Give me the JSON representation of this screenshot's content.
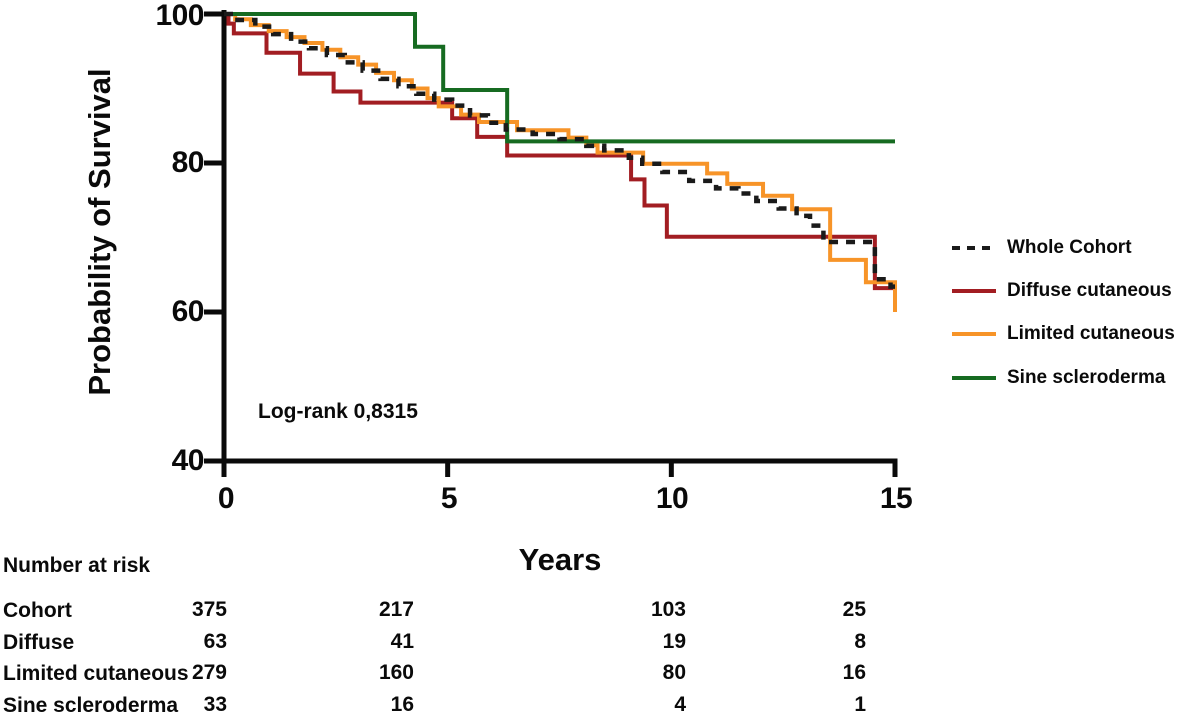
{
  "chart_data": {
    "type": "line",
    "subtype": "kaplan-meier-step",
    "xlabel": "Years",
    "ylabel": "Probability of Survival",
    "xlim": [
      0,
      15
    ],
    "ylim": [
      40,
      100
    ],
    "x_ticks": [
      0,
      5,
      10,
      15
    ],
    "y_ticks": [
      100,
      80,
      60,
      40
    ],
    "x_tick_labels": [
      "0",
      "5",
      "10",
      "15"
    ],
    "y_tick_labels": [
      "100",
      "80",
      "60",
      "40"
    ],
    "grid": false,
    "legend_position": "right-outside",
    "annotation": "Log-rank 0,8315",
    "axis_color": "#0a0a0a",
    "series": [
      {
        "name": "Whole Cohort",
        "color": "#1a1a1a",
        "dash": true,
        "z": 4,
        "points": [
          [
            0,
            100
          ],
          [
            0.3,
            99.2
          ],
          [
            0.7,
            98.3
          ],
          [
            1.1,
            97.3
          ],
          [
            1.5,
            96.3
          ],
          [
            1.9,
            95.4
          ],
          [
            2.3,
            94.5
          ],
          [
            2.7,
            93.5
          ],
          [
            3.1,
            92.4
          ],
          [
            3.5,
            91.3
          ],
          [
            3.9,
            90.3
          ],
          [
            4.3,
            89.3
          ],
          [
            4.7,
            88.5
          ],
          [
            5.1,
            87.7
          ],
          [
            5.5,
            86.4
          ],
          [
            5.9,
            85.4
          ],
          [
            6.3,
            84.5
          ],
          [
            6.9,
            83.9
          ],
          [
            7.5,
            83.2
          ],
          [
            8.1,
            82.3
          ],
          [
            8.5,
            81.7
          ],
          [
            9.05,
            80.7
          ],
          [
            9.35,
            79.9
          ],
          [
            9.8,
            78.8
          ],
          [
            10.4,
            77.6
          ],
          [
            11.0,
            76.6
          ],
          [
            11.5,
            75.9
          ],
          [
            11.9,
            74.9
          ],
          [
            12.4,
            73.9
          ],
          [
            12.8,
            72.9
          ],
          [
            13.1,
            71.6
          ],
          [
            13.4,
            69.4
          ],
          [
            14.55,
            64.4
          ],
          [
            14.9,
            63.4
          ],
          [
            15,
            63.4
          ]
        ]
      },
      {
        "name": "Diffuse cutaneous",
        "color": "#a21d22",
        "dash": false,
        "z": 1,
        "points": [
          [
            0,
            100
          ],
          [
            0.1,
            98.7
          ],
          [
            0.22,
            97.4
          ],
          [
            0.95,
            94.8
          ],
          [
            1.7,
            92.0
          ],
          [
            2.45,
            89.6
          ],
          [
            3.05,
            88.1
          ],
          [
            5.1,
            86.0
          ],
          [
            5.66,
            83.5
          ],
          [
            6.33,
            81.0
          ],
          [
            9.1,
            77.8
          ],
          [
            9.4,
            74.3
          ],
          [
            9.9,
            70.1
          ],
          [
            14.55,
            63.2
          ],
          [
            15,
            63.2
          ]
        ]
      },
      {
        "name": "Limited cutaneous",
        "color": "#f79428",
        "dash": false,
        "z": 2,
        "points": [
          [
            0,
            100
          ],
          [
            0.25,
            99.3
          ],
          [
            0.6,
            98.5
          ],
          [
            1.0,
            97.7
          ],
          [
            1.4,
            96.9
          ],
          [
            1.8,
            96.1
          ],
          [
            2.2,
            95.2
          ],
          [
            2.6,
            94.2
          ],
          [
            3.0,
            93.2
          ],
          [
            3.4,
            92.1
          ],
          [
            3.8,
            91.1
          ],
          [
            4.2,
            90.0
          ],
          [
            4.55,
            88.7
          ],
          [
            4.8,
            87.6
          ],
          [
            5.3,
            86.5
          ],
          [
            5.7,
            85.5
          ],
          [
            6.55,
            84.4
          ],
          [
            7.7,
            83.4
          ],
          [
            8.1,
            82.4
          ],
          [
            8.35,
            81.4
          ],
          [
            9.37,
            79.9
          ],
          [
            10.8,
            78.6
          ],
          [
            11.25,
            77.2
          ],
          [
            12.05,
            75.6
          ],
          [
            12.7,
            73.8
          ],
          [
            13.55,
            67.0
          ],
          [
            14.35,
            64.0
          ],
          [
            15,
            60.0
          ]
        ]
      },
      {
        "name": "Sine scleroderma",
        "color": "#166b21",
        "dash": false,
        "z": 3,
        "points": [
          [
            0,
            100
          ],
          [
            4.27,
            95.6
          ],
          [
            4.9,
            89.8
          ],
          [
            6.33,
            82.9
          ],
          [
            15,
            82.9
          ]
        ]
      }
    ]
  },
  "risk_table": {
    "header": "Number at risk",
    "rows": [
      {
        "label": "Cohort",
        "values": [
          375,
          217,
          103,
          25
        ]
      },
      {
        "label": "Diffuse",
        "values": [
          63,
          41,
          19,
          8
        ]
      },
      {
        "label": "Limited cutaneous",
        "values": [
          279,
          160,
          80,
          16
        ]
      },
      {
        "label": "Sine scleroderma",
        "values": [
          33,
          16,
          4,
          1
        ]
      }
    ]
  }
}
